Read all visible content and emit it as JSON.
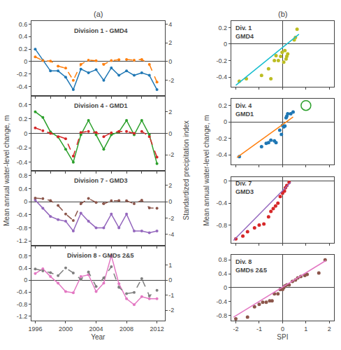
{
  "chart_data": [
    {
      "type": "line",
      "title": "(a)",
      "ylabel": "Mean annual water-level change, m",
      "y2label": "Standardized precipitation index",
      "annotations": [
        "Division 1 - GMD4"
      ],
      "x": [
        1996,
        1997,
        1998,
        1999,
        2000,
        2001,
        2002,
        2003,
        2004,
        2005,
        2006,
        2007,
        2008,
        2009,
        2010,
        2011,
        2012
      ],
      "xlim": [
        1995.5,
        2013.0
      ],
      "xticks": [
        1996,
        1998,
        2000,
        2002,
        2004,
        2006,
        2008,
        2010,
        2012
      ],
      "tick_labels": "y",
      "ylim": [
        -0.55,
        0.65
      ],
      "yticks": [
        -0.4,
        -0.2,
        0.0,
        0.2,
        0.4,
        0.6
      ],
      "y2lim": [
        -3.67,
        4.33
      ],
      "y2ticks": [
        -2,
        0,
        2,
        4
      ],
      "grid": false,
      "series": [
        {
          "values": [
            0.2,
            0.02,
            -0.15,
            -0.15,
            -0.25,
            -0.45,
            -0.12,
            -0.18,
            -0.13,
            -0.3,
            -0.1,
            -0.22,
            -0.15,
            -0.22,
            -0.18,
            -0.22,
            -0.45
          ],
          "line_style": "solid",
          "marker": "circle"
        },
        {
          "values": [
            0.5,
            0.1,
            0.05,
            -0.5,
            -0.7,
            -2.0,
            -0.3,
            0.15,
            0.08,
            -0.3,
            0.1,
            0.2,
            0.22,
            0.15,
            0.22,
            -0.3,
            -2.2
          ],
          "axis": "y2",
          "line_style": "dashed",
          "marker": "circle"
        }
      ]
    },
    {
      "type": "line",
      "annotations": [
        "Division 4 - GMD1"
      ],
      "x": [
        1996,
        1997,
        1998,
        1999,
        2000,
        2001,
        2002,
        2003,
        2004,
        2005,
        2006,
        2007,
        2008,
        2009,
        2010,
        2011,
        2012
      ],
      "xlim": [
        1995.5,
        2013.0
      ],
      "xticks": [
        1996,
        1998,
        2000,
        2002,
        2004,
        2006,
        2008,
        2010,
        2012
      ],
      "tick_labels": "y",
      "ylim": [
        -0.52,
        0.52
      ],
      "yticks": [
        -0.4,
        -0.2,
        0.0,
        0.2,
        0.4
      ],
      "y2lim": [
        -3.47,
        3.47
      ],
      "y2ticks": [
        -2,
        0,
        2
      ],
      "grid": false,
      "series": [
        {
          "values": [
            0.3,
            0.22,
            0.02,
            -0.05,
            -0.22,
            -0.4,
            -0.02,
            0.18,
            -0.02,
            -0.22,
            -0.02,
            0.02,
            0.18,
            -0.02,
            0.18,
            -0.02,
            -0.42
          ],
          "line_style": "solid",
          "marker": "circle"
        },
        {
          "values": [
            0.5,
            0.25,
            0.0,
            -0.3,
            -0.5,
            -2.1,
            0.08,
            0.18,
            0.08,
            -0.3,
            0.05,
            0.18,
            0.18,
            0.0,
            0.18,
            -0.3,
            -2.2
          ],
          "axis": "y2",
          "line_style": "dashed",
          "marker": "circle"
        }
      ]
    },
    {
      "type": "line",
      "annotations": [
        "Division 7 - GMD3"
      ],
      "x": [
        1996,
        1997,
        1998,
        1999,
        2000,
        2001,
        2002,
        2003,
        2004,
        2005,
        2006,
        2007,
        2008,
        2009,
        2010,
        2011,
        2012
      ],
      "xlim": [
        1995.5,
        2013.0
      ],
      "xticks": [
        1996,
        1998,
        2000,
        2002,
        2004,
        2006,
        2008,
        2010,
        2012
      ],
      "tick_labels": "y",
      "ylim": [
        -1.35,
        0.95
      ],
      "yticks": [
        -1.2,
        -0.8,
        -0.4,
        0.0,
        0.4,
        0.8
      ],
      "y2lim": [
        -5.4,
        3.8
      ],
      "y2ticks": [
        -4,
        -2,
        0,
        2
      ],
      "grid": false,
      "series": [
        {
          "values": [
            0.05,
            -0.2,
            -0.45,
            -0.55,
            -0.6,
            -0.9,
            -0.35,
            -0.6,
            -0.8,
            -0.8,
            -0.38,
            -0.8,
            -0.38,
            -0.9,
            -0.9,
            -0.95,
            -0.9
          ],
          "line_style": "solid",
          "marker": "circle"
        },
        {
          "values": [
            0.45,
            0.38,
            0.15,
            -0.45,
            -1.5,
            -2.3,
            -0.25,
            0.4,
            -0.08,
            -0.25,
            0.12,
            0.15,
            0.12,
            -0.25,
            0.18,
            -0.75,
            -0.8
          ],
          "axis": "y2",
          "line_style": "dashed",
          "marker": "circle"
        }
      ]
    },
    {
      "type": "line",
      "xlabel": "Year",
      "annotations": [
        "Division 8 - GMDs 2&5"
      ],
      "x": [
        1996,
        1997,
        1998,
        1999,
        2000,
        2001,
        2002,
        2003,
        2004,
        2005,
        2006,
        2007,
        2008,
        2009,
        2010,
        2011,
        2012
      ],
      "xlim": [
        1995.5,
        2013.0
      ],
      "xticks": [
        1996,
        2000,
        2004,
        2008,
        2012
      ],
      "ylim": [
        -1.35,
        1.15
      ],
      "yticks": [
        -1.2,
        -0.8,
        -0.4,
        0.0,
        0.4,
        0.8
      ],
      "y2lim": [
        -2.7,
        2.3
      ],
      "y2ticks": [
        -2,
        -1,
        0,
        1
      ],
      "grid": false,
      "series": [
        {
          "values": [
            0.22,
            0.38,
            0.12,
            -0.1,
            -0.38,
            -0.42,
            0.12,
            0.18,
            -0.38,
            -0.1,
            0.82,
            -0.12,
            -0.62,
            -0.82,
            -0.55,
            -0.62,
            -0.62
          ],
          "line_style": "solid",
          "marker": "circle"
        },
        {
          "values": [
            0.75,
            0.62,
            0.5,
            0.3,
            0.82,
            0.48,
            0.05,
            0.55,
            -0.42,
            0.15,
            0.9,
            -0.48,
            -0.9,
            -0.82,
            0.1,
            -1.05,
            -0.68
          ],
          "axis": "y2",
          "line_style": "dashed",
          "marker": "circle"
        }
      ]
    },
    {
      "type": "scatter",
      "title": "(b)",
      "ylabel": "Mean annual water-level change, m",
      "annotations": [
        "Div. 1\nGMD4"
      ],
      "xlim": [
        -2.2,
        2.2
      ],
      "xticks": [
        -2,
        -1,
        0,
        1,
        2
      ],
      "tick_labels": "y",
      "ylim": [
        -0.52,
        0.28
      ],
      "yticks": [
        -0.4,
        -0.2,
        0.0,
        0.2
      ],
      "grid": false,
      "series": [
        {
          "type": "scatter",
          "marker": "circle",
          "x": [
            -1.85,
            -1.55,
            -0.9,
            -0.6,
            -0.5,
            -0.35,
            -0.28,
            -0.18,
            -0.08,
            -0.02,
            0.05,
            0.1,
            0.15,
            0.18,
            0.22,
            0.5,
            0.55,
            0.62
          ],
          "values": [
            -0.45,
            -0.42,
            -0.38,
            -0.3,
            -0.42,
            -0.2,
            -0.14,
            -0.2,
            -0.15,
            -0.1,
            -0.22,
            -0.08,
            -0.18,
            -0.15,
            -0.12,
            0.05,
            0.08,
            0.18
          ]
        },
        {
          "type": "line",
          "line_style": "solid",
          "x": [
            -2.0,
            0.7
          ],
          "values": [
            -0.5,
            0.12
          ]
        }
      ]
    },
    {
      "type": "scatter",
      "annotations": [
        "Div. 4\nGMD1"
      ],
      "xlim": [
        -2.2,
        2.2
      ],
      "xticks": [
        -2,
        -1,
        0,
        1,
        2
      ],
      "tick_labels": "y",
      "ylim": [
        -0.52,
        0.28
      ],
      "yticks": [
        -0.4,
        -0.2,
        0.0,
        0.2
      ],
      "grid": false,
      "series": [
        {
          "type": "scatter",
          "marker": "circle",
          "x": [
            -1.85,
            -0.9,
            -0.7,
            -0.6,
            -0.5,
            -0.35,
            -0.28,
            -0.12,
            -0.05,
            0.0,
            0.05,
            0.1,
            0.15,
            0.18,
            0.22,
            0.35,
            0.45
          ],
          "values": [
            -0.42,
            -0.3,
            -0.26,
            -0.25,
            -0.22,
            -0.23,
            -0.25,
            -0.1,
            -0.15,
            -0.04,
            -0.06,
            -0.05,
            0.05,
            0.07,
            0.1,
            0.1,
            0.12
          ]
        },
        {
          "type": "line",
          "line_style": "solid",
          "x": [
            -1.95,
            0.45
          ],
          "values": [
            -0.43,
            0.06
          ]
        },
        {
          "type": "scatter",
          "marker": "circle-open",
          "x": [
            1.0
          ],
          "values": [
            0.2
          ]
        }
      ]
    },
    {
      "type": "scatter",
      "annotations": [
        "Div. 7\nGMD3"
      ],
      "xlim": [
        -2.2,
        2.2
      ],
      "xticks": [
        -2,
        -1,
        0,
        1,
        2
      ],
      "tick_labels": "y",
      "ylim": [
        -1.12,
        0.08
      ],
      "yticks": [
        -0.8,
        -0.4,
        0.0
      ],
      "grid": false,
      "series": [
        {
          "type": "scatter",
          "marker": "circle",
          "x": [
            -2.0,
            -1.7,
            -1.5,
            -1.2,
            -1.0,
            -0.8,
            -0.6,
            -0.5,
            -0.4,
            -0.3,
            -0.2,
            -0.1,
            0.0,
            0.08,
            0.12,
            0.18,
            0.28
          ],
          "values": [
            -1.05,
            -1.0,
            -0.92,
            -0.85,
            -0.8,
            -0.78,
            -0.65,
            -0.55,
            -0.5,
            -0.45,
            -0.4,
            -0.28,
            -0.22,
            -0.18,
            -0.12,
            -0.08,
            -0.02
          ]
        },
        {
          "type": "line",
          "line_style": "solid",
          "x": [
            -2.1,
            0.35
          ],
          "values": [
            -1.08,
            -0.02
          ]
        }
      ]
    },
    {
      "type": "scatter",
      "xlabel": "SPI",
      "annotations": [
        "Div. 8\nGMDs 2&5"
      ],
      "xlim": [
        -2.2,
        2.2
      ],
      "xticks": [
        -2,
        -1,
        0,
        1,
        2
      ],
      "ylim": [
        -0.95,
        0.95
      ],
      "yticks": [
        -0.8,
        -0.4,
        0.0,
        0.4,
        0.8
      ],
      "grid": false,
      "series": [
        {
          "type": "scatter",
          "marker": "circle",
          "x": [
            -2.0,
            -1.5,
            -1.2,
            -1.0,
            -0.85,
            -0.7,
            -0.55,
            -0.45,
            -0.35,
            -0.2,
            -0.1,
            0.0,
            0.05,
            0.1,
            0.18,
            0.28,
            0.42,
            0.55,
            0.65,
            0.78,
            0.95,
            1.05,
            1.55,
            1.82
          ],
          "values": [
            -0.9,
            -0.85,
            -0.55,
            -0.48,
            -0.42,
            -0.42,
            -0.38,
            -0.38,
            -0.18,
            -0.18,
            -0.05,
            -0.05,
            0.0,
            0.05,
            0.08,
            0.08,
            0.18,
            0.22,
            0.28,
            0.32,
            0.35,
            0.38,
            0.42,
            0.8
          ]
        },
        {
          "type": "line",
          "line_style": "solid",
          "x": [
            -2.1,
            1.85
          ],
          "values": [
            -0.85,
            0.78
          ]
        }
      ]
    }
  ]
}
